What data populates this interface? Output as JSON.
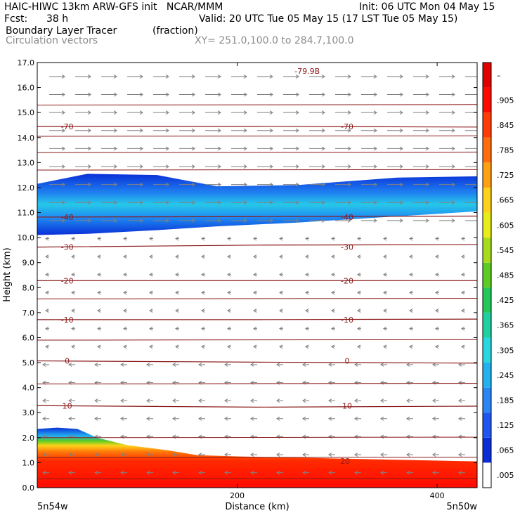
{
  "header": {
    "model_line": "HAIC-HIWC 13km ARW-GFS init   NCAR/MMM",
    "init_line": "Init: 06 UTC Mon 04 May 15",
    "fcst_label": "Fcst:",
    "fcst_value": "38 h",
    "valid_line": "Valid: 20 UTC Tue 05 May 15 (17 LST Tue 05 May 15)",
    "field_name": "Boundary Layer Tracer",
    "field_unit": "(fraction)",
    "overlay_name": "Circulation vectors",
    "xsec_line": "XY= 251.0,100.0 to 284.7,100.0"
  },
  "chart_data": {
    "type": "heatmap",
    "title": "Boundary Layer Tracer",
    "units": "(fraction)",
    "xlabel": "Distance (km)",
    "ylabel": "Height (km)",
    "xlim": [
      0,
      440
    ],
    "ylim": [
      0,
      17
    ],
    "x_ticks": [
      "200",
      "400"
    ],
    "x_tick_values": [
      200,
      400
    ],
    "x_endpoint_labels": [
      "5n54w",
      "5n50w"
    ],
    "y_ticks": [
      "0.0",
      "1.0",
      "2.0",
      "3.0",
      "4.0",
      "5.0",
      "6.0",
      "7.0",
      "8.0",
      "9.0",
      "10.0",
      "11.0",
      "12.0",
      "13.0",
      "14.0",
      "15.0",
      "16.0",
      "17.0"
    ],
    "y_tick_values": [
      0,
      1,
      2,
      3,
      4,
      5,
      6,
      7,
      8,
      9,
      10,
      11,
      12,
      13,
      14,
      15,
      16,
      17
    ],
    "colorbar": {
      "labels": [
        ".005",
        ".065",
        ".125",
        ".185",
        ".245",
        ".305",
        ".365",
        ".425",
        ".485",
        ".545",
        ".605",
        ".665",
        ".725",
        ".785",
        ".845",
        ".905",
        "–"
      ],
      "colors": [
        "#ffffff",
        "#0a2fd8",
        "#1f55f0",
        "#2a86f5",
        "#22b2f0",
        "#27d8e0",
        "#1fd0a0",
        "#22c85a",
        "#5acc22",
        "#a8dc1a",
        "#e8ec18",
        "#ffd21a",
        "#ffa012",
        "#ff6e0a",
        "#ff3c06",
        "#ff0a00",
        "#e00000"
      ]
    },
    "temperature_contours": [
      {
        "value": 10,
        "label": "10",
        "z": [
          3.28,
          3.22,
          3.26
        ]
      },
      {
        "value": 0,
        "label": "0",
        "z": [
          5.07,
          5.02,
          4.98
        ]
      },
      {
        "value": -10,
        "label": "-10",
        "z": [
          6.72,
          6.72,
          6.74
        ]
      },
      {
        "value": -20,
        "label": "-20",
        "z": [
          8.28,
          8.28,
          8.28
        ]
      },
      {
        "value": -30,
        "label": "-30",
        "z": [
          9.62,
          9.7,
          9.72
        ]
      },
      {
        "value": -40,
        "label": "-40",
        "z": [
          10.82,
          10.84,
          10.86
        ]
      },
      {
        "value": -70,
        "label": "-70",
        "z": [
          14.45,
          14.45,
          14.42
        ]
      }
    ],
    "extra_contour_labels": [
      {
        "label": "20",
        "x": 308,
        "z": 0.95
      },
      {
        "label": "-79.9B",
        "x": 270,
        "z": 16.55
      }
    ],
    "anvil_layer": {
      "top_km": [
        12.15,
        12.55,
        12.5,
        12.05,
        12.1,
        12.4,
        12.45
      ],
      "bottom_km": [
        10.1,
        10.15,
        10.3,
        10.45,
        10.6,
        10.85,
        11.05
      ],
      "x_km": [
        0,
        50,
        120,
        180,
        260,
        360,
        440
      ]
    },
    "boundary_layer": {
      "x_km": [
        0,
        20,
        40,
        60,
        90,
        130,
        160,
        200,
        260,
        320,
        380,
        440
      ],
      "top_km": [
        2.35,
        2.4,
        2.35,
        2.0,
        1.7,
        1.5,
        1.3,
        1.25,
        1.2,
        1.15,
        1.1,
        1.05
      ]
    },
    "grid": false,
    "legend": "right colorbar"
  }
}
